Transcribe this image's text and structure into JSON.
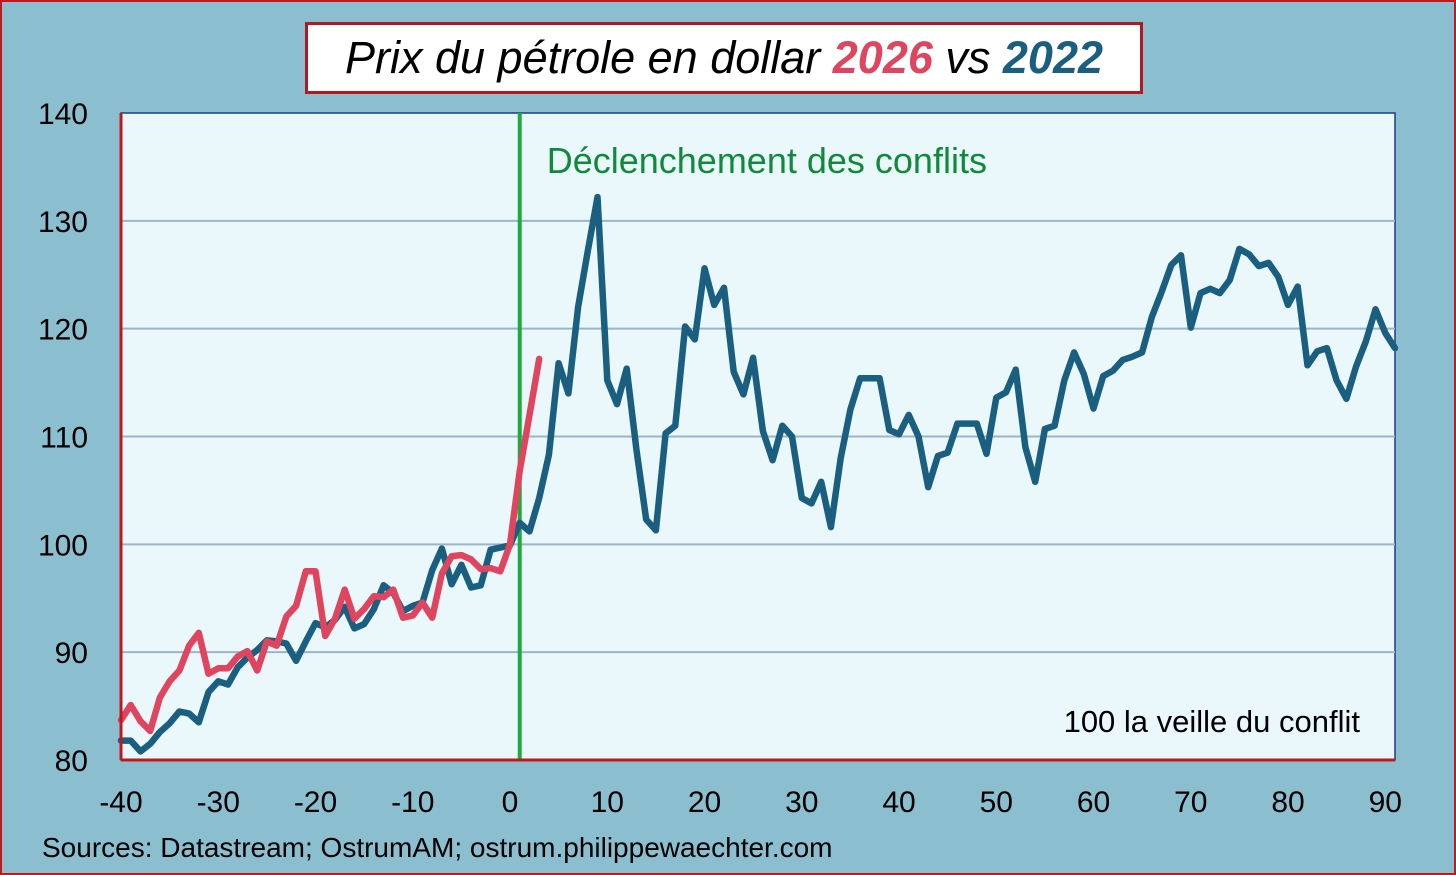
{
  "title": {
    "prefix": "Prix du pétrole en dollar ",
    "year_a": "2026",
    "middle": " vs ",
    "year_b": "2022"
  },
  "source": "Sources: Datastream;  OstrumAM; ostrum.philippewaechter.com",
  "colors": {
    "background": "#8bbfcf",
    "plot_background": "#eaf8fc",
    "frame": "#c0181f",
    "grid": "#9bb3cc",
    "series_2022": "#1a5f80",
    "series_2026": "#e0455f",
    "conflict_line": "#1eaa3c",
    "conflict_text": "#0f8a3a"
  },
  "chart_data": {
    "type": "line",
    "xlabel": "",
    "ylabel": "",
    "xlim": [
      -40,
      91
    ],
    "ylim": [
      80,
      140
    ],
    "xticks": [
      "-40",
      "-30",
      "-20",
      "-10",
      "0",
      "10",
      "20",
      "30",
      "40",
      "50",
      "60",
      "70",
      "80",
      "90"
    ],
    "yticks": [
      "80",
      "90",
      "100",
      "110",
      "120",
      "130",
      "140"
    ],
    "grid": "horizontal",
    "annotations": {
      "vline_x": 1,
      "vline_label": "Déclenchement des conflits",
      "base_note": "100 la veille du conflit"
    },
    "series": [
      {
        "name": "2022",
        "x": [
          -40,
          -39,
          -38,
          -37,
          -36,
          -35,
          -34,
          -33,
          -32,
          -31,
          -30,
          -29,
          -28,
          -27,
          -26,
          -25,
          -24,
          -23,
          -22,
          -21,
          -20,
          -19,
          -18,
          -17,
          -16,
          -15,
          -14,
          -13,
          -12,
          -11,
          -10,
          -9,
          -8,
          -7,
          -6,
          -5,
          -4,
          -3,
          -2,
          -1,
          0,
          1,
          2,
          3,
          4,
          5,
          6,
          7,
          8,
          9,
          10,
          11,
          12,
          13,
          14,
          15,
          16,
          17,
          18,
          19,
          20,
          21,
          22,
          23,
          24,
          25,
          26,
          27,
          28,
          29,
          30,
          31,
          32,
          33,
          34,
          35,
          36,
          37,
          38,
          39,
          40,
          41,
          42,
          43,
          44,
          45,
          46,
          47,
          48,
          49,
          50,
          51,
          52,
          53,
          54,
          55,
          56,
          57,
          58,
          59,
          60,
          61,
          62,
          63,
          64,
          65,
          66,
          67,
          68,
          69,
          70,
          71,
          72,
          73,
          74,
          75,
          76,
          77,
          78,
          79,
          80,
          81,
          82,
          83,
          84,
          85,
          86,
          87,
          88,
          89,
          90,
          91
        ],
        "values": [
          81.8,
          81.8,
          80.8,
          81.5,
          82.6,
          83.4,
          84.5,
          84.3,
          83.5,
          86.3,
          87.3,
          87.0,
          88.6,
          89.5,
          90.2,
          91.1,
          91.0,
          90.8,
          89.2,
          91.0,
          92.7,
          92.3,
          93.0,
          94.2,
          92.2,
          92.6,
          94.0,
          96.2,
          95.5,
          93.8,
          94.3,
          94.6,
          97.6,
          99.6,
          96.3,
          98.1,
          96.0,
          96.2,
          99.5,
          99.7,
          99.9,
          102.0,
          101.2,
          104.3,
          108.3,
          116.8,
          114.0,
          122.0,
          127.2,
          132.2,
          115.2,
          113.0,
          116.3,
          108.8,
          102.3,
          101.3,
          110.3,
          111.0,
          120.2,
          119.0,
          125.6,
          122.2,
          123.8,
          116.0,
          113.9,
          117.3,
          110.5,
          107.8,
          111.0,
          110.0,
          104.3,
          103.8,
          105.8,
          101.6,
          108.0,
          112.5,
          115.4,
          115.4,
          115.4,
          110.6,
          110.2,
          112.0,
          110.0,
          105.3,
          108.2,
          108.5,
          111.2,
          111.2,
          111.2,
          108.4,
          113.6,
          114.1,
          116.2,
          109.0,
          105.8,
          110.7,
          111.0,
          115.2,
          117.8,
          115.8,
          112.6,
          115.6,
          116.1,
          117.1,
          117.4,
          117.8,
          121.1,
          123.4,
          125.9,
          126.8,
          120.1,
          123.3,
          123.7,
          123.3,
          124.5,
          127.4,
          126.9,
          125.8,
          126.1,
          124.8,
          122.2,
          123.9,
          116.6,
          117.9,
          118.2,
          115.2,
          113.5,
          116.5,
          118.8,
          121.8,
          119.6,
          118.2
        ]
      },
      {
        "name": "2026",
        "x": [
          -40,
          -39,
          -38,
          -37,
          -36,
          -35,
          -34,
          -33,
          -32,
          -31,
          -30,
          -29,
          -28,
          -27,
          -26,
          -25,
          -24,
          -23,
          -22,
          -21,
          -20,
          -19,
          -18,
          -17,
          -16,
          -15,
          -14,
          -13,
          -12,
          -11,
          -10,
          -9,
          -8,
          -7,
          -6,
          -5,
          -4,
          -3,
          -2,
          -1,
          0,
          1,
          2,
          3
        ],
        "values": [
          83.7,
          85.1,
          83.6,
          82.7,
          85.8,
          87.3,
          88.3,
          90.6,
          91.8,
          88.0,
          88.5,
          88.5,
          89.6,
          90.1,
          88.3,
          91.0,
          90.6,
          93.3,
          94.3,
          97.5,
          97.5,
          91.5,
          93.1,
          95.8,
          93.1,
          94.0,
          95.2,
          95.1,
          95.8,
          93.2,
          93.4,
          94.6,
          93.2,
          97.3,
          98.9,
          99.0,
          98.6,
          97.7,
          97.8,
          97.5,
          100.0,
          106.8,
          112.0,
          117.2
        ]
      }
    ]
  }
}
